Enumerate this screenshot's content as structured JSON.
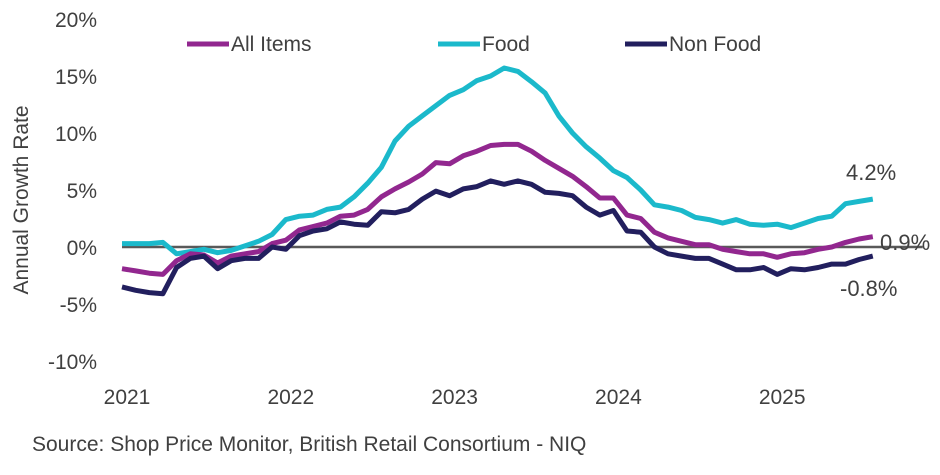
{
  "chart_data": {
    "type": "line",
    "title": "",
    "ylabel": "Annual Growth Rate",
    "xlabel": "",
    "ylim": [
      -10,
      20
    ],
    "yticks": [
      20,
      15,
      10,
      5,
      0,
      -5,
      -10
    ],
    "ytick_labels": [
      "20%",
      "15%",
      "10%",
      "5%",
      "0%",
      "-5%",
      "-10%"
    ],
    "xtick_labels": [
      "2021",
      "2022",
      "2023",
      "2024",
      "2025"
    ],
    "x_start": "Jan 2021",
    "x_end": "Aug 2025",
    "legend_placement": "top",
    "grid": false,
    "series": [
      {
        "name": "All Items",
        "color": "#92278f",
        "end_label": "0.9%",
        "values": [
          -1.9,
          -2.1,
          -2.3,
          -2.4,
          -1.2,
          -0.6,
          -0.7,
          -1.4,
          -0.8,
          -0.6,
          -0.4,
          0.3,
          0.6,
          1.5,
          1.8,
          2.1,
          2.7,
          2.8,
          3.3,
          4.4,
          5.1,
          5.7,
          6.4,
          7.4,
          7.3,
          8.0,
          8.4,
          8.9,
          9.0,
          9.0,
          8.4,
          7.6,
          6.9,
          6.2,
          5.3,
          4.3,
          4.3,
          2.8,
          2.5,
          1.3,
          0.8,
          0.5,
          0.2,
          0.2,
          -0.2,
          -0.4,
          -0.6,
          -0.6,
          -0.9,
          -0.6,
          -0.5,
          -0.2,
          0.0,
          0.4,
          0.7,
          0.9
        ]
      },
      {
        "name": "Food",
        "color": "#1bb9cb",
        "end_label": "4.2%",
        "values": [
          0.3,
          0.3,
          0.3,
          0.4,
          -0.6,
          -0.4,
          -0.2,
          -0.5,
          -0.3,
          0.1,
          0.5,
          1.1,
          2.4,
          2.7,
          2.8,
          3.3,
          3.5,
          4.4,
          5.6,
          7.0,
          9.3,
          10.6,
          11.5,
          12.4,
          13.3,
          13.8,
          14.6,
          15.0,
          15.7,
          15.4,
          14.5,
          13.5,
          11.5,
          10.0,
          8.8,
          7.8,
          6.7,
          6.1,
          5.0,
          3.7,
          3.5,
          3.2,
          2.6,
          2.4,
          2.1,
          2.4,
          2.0,
          1.9,
          2.0,
          1.7,
          2.1,
          2.5,
          2.7,
          3.8,
          4.0,
          4.2
        ]
      },
      {
        "name": "Non Food",
        "color": "#221f5e",
        "end_label": "-0.8%",
        "values": [
          -3.5,
          -3.8,
          -4.0,
          -4.1,
          -1.8,
          -1.0,
          -0.8,
          -1.9,
          -1.2,
          -1.0,
          -1.0,
          0.0,
          -0.2,
          1.0,
          1.4,
          1.6,
          2.2,
          2.0,
          1.9,
          3.1,
          3.0,
          3.3,
          4.2,
          4.9,
          4.5,
          5.1,
          5.3,
          5.8,
          5.5,
          5.8,
          5.5,
          4.8,
          4.7,
          4.5,
          3.5,
          2.8,
          3.2,
          1.4,
          1.3,
          0.0,
          -0.6,
          -0.8,
          -1.0,
          -1.0,
          -1.5,
          -2.0,
          -2.0,
          -1.8,
          -2.4,
          -1.9,
          -2.0,
          -1.8,
          -1.5,
          -1.5,
          -1.1,
          -0.8
        ]
      }
    ],
    "source": "Source: Shop Price Monitor, British Retail Consortium - NIQ"
  }
}
